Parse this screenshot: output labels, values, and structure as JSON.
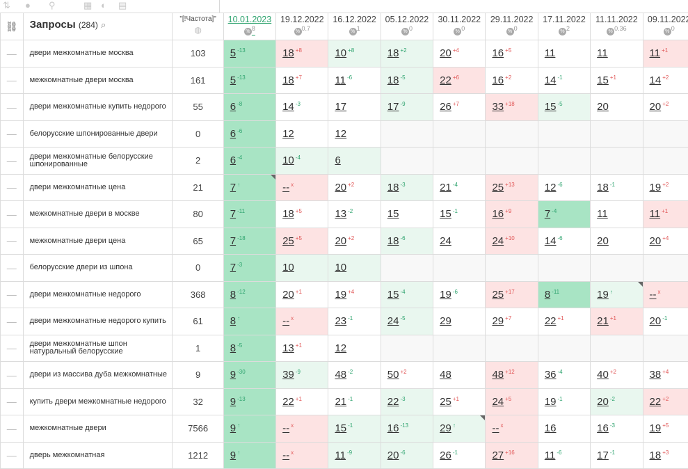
{
  "toolbar": {
    "icons": [
      "sort-icon",
      "toggle-icon",
      "link-icon",
      "calc-icon",
      "chart-icon",
      "export-icon"
    ]
  },
  "header": {
    "link_icon": "link-icon",
    "query_label": "Запросы",
    "query_count": "(284)",
    "search_icon": "search-icon",
    "freq_label": "\"[!Частота]\"",
    "globe_icon": "globe-icon",
    "dates": [
      {
        "date": "10.01.2023",
        "pct": "8"
      },
      {
        "date": "19.12.2022",
        "pct": "0.7"
      },
      {
        "date": "16.12.2022",
        "pct": "1"
      },
      {
        "date": "05.12.2022",
        "pct": "0"
      },
      {
        "date": "30.11.2022",
        "pct": "0"
      },
      {
        "date": "29.11.2022",
        "pct": "0"
      },
      {
        "date": "17.11.2022",
        "pct": "2"
      },
      {
        "date": "11.11.2022",
        "pct": "0.36"
      },
      {
        "date": "09.11.2022",
        "pct": "0"
      }
    ]
  },
  "colors": {
    "green": "#e9f7ef",
    "green_strong": "#a8e4c4",
    "red": "#fde3e3",
    "empty": "#f8f8f8",
    "up": "#2ea36e",
    "down": "#e05555"
  },
  "rows": [
    {
      "query": "двери межкомнатные москва",
      "freq": "103",
      "cells": [
        {
          "v": "5",
          "c": "-13",
          "s": "up",
          "b": "gg"
        },
        {
          "v": "18",
          "c": "+8",
          "s": "dn",
          "b": "r"
        },
        {
          "v": "10",
          "c": "+8",
          "s": "up",
          "b": "g"
        },
        {
          "v": "18",
          "c": "+2",
          "s": "up",
          "b": "g"
        },
        {
          "v": "20",
          "c": "+4",
          "s": "dn",
          "b": ""
        },
        {
          "v": "16",
          "c": "+5",
          "s": "dn",
          "b": ""
        },
        {
          "v": "11",
          "c": "",
          "s": "",
          "b": ""
        },
        {
          "v": "11",
          "c": "",
          "s": "",
          "b": ""
        },
        {
          "v": "11",
          "c": "+1",
          "s": "dn",
          "b": "r"
        }
      ]
    },
    {
      "query": "межкомнатные двери москва",
      "freq": "161",
      "cells": [
        {
          "v": "5",
          "c": "-13",
          "s": "up",
          "b": "gg"
        },
        {
          "v": "18",
          "c": "+7",
          "s": "dn",
          "b": ""
        },
        {
          "v": "11",
          "c": "-6",
          "s": "up",
          "b": ""
        },
        {
          "v": "18",
          "c": "-5",
          "s": "up",
          "b": "g"
        },
        {
          "v": "22",
          "c": "+6",
          "s": "dn",
          "b": "r"
        },
        {
          "v": "16",
          "c": "+2",
          "s": "dn",
          "b": ""
        },
        {
          "v": "14",
          "c": "-1",
          "s": "up",
          "b": ""
        },
        {
          "v": "15",
          "c": "+1",
          "s": "dn",
          "b": ""
        },
        {
          "v": "14",
          "c": "+2",
          "s": "dn",
          "b": ""
        }
      ]
    },
    {
      "query": "двери межкомнатные купить недорого",
      "freq": "55",
      "cells": [
        {
          "v": "6",
          "c": "-8",
          "s": "up",
          "b": "gg"
        },
        {
          "v": "14",
          "c": "-3",
          "s": "up",
          "b": ""
        },
        {
          "v": "17",
          "c": "",
          "s": "",
          "b": ""
        },
        {
          "v": "17",
          "c": "-9",
          "s": "up",
          "b": "g"
        },
        {
          "v": "26",
          "c": "+7",
          "s": "dn",
          "b": ""
        },
        {
          "v": "33",
          "c": "+18",
          "s": "dn",
          "b": "r"
        },
        {
          "v": "15",
          "c": "-5",
          "s": "up",
          "b": "g"
        },
        {
          "v": "20",
          "c": "",
          "s": "",
          "b": ""
        },
        {
          "v": "20",
          "c": "+2",
          "s": "dn",
          "b": ""
        }
      ]
    },
    {
      "query": "белорусские шпонированные двери",
      "freq": "0",
      "cells": [
        {
          "v": "6",
          "c": "-6",
          "s": "up",
          "b": "gg"
        },
        {
          "v": "12",
          "c": "",
          "s": "",
          "b": ""
        },
        {
          "v": "12",
          "c": "",
          "s": "",
          "b": ""
        },
        {
          "v": "",
          "c": "",
          "s": "",
          "b": "e"
        },
        {
          "v": "",
          "c": "",
          "s": "",
          "b": "e"
        },
        {
          "v": "",
          "c": "",
          "s": "",
          "b": "e"
        },
        {
          "v": "",
          "c": "",
          "s": "",
          "b": "e"
        },
        {
          "v": "",
          "c": "",
          "s": "",
          "b": "e"
        },
        {
          "v": "",
          "c": "",
          "s": "",
          "b": "e"
        }
      ]
    },
    {
      "query": "двери межкомнатные белорусские шпонированные",
      "freq": "2",
      "cells": [
        {
          "v": "6",
          "c": "-4",
          "s": "up",
          "b": "gg"
        },
        {
          "v": "10",
          "c": "-4",
          "s": "up",
          "b": "g"
        },
        {
          "v": "6",
          "c": "",
          "s": "",
          "b": "g"
        },
        {
          "v": "",
          "c": "",
          "s": "",
          "b": "e"
        },
        {
          "v": "",
          "c": "",
          "s": "",
          "b": "e"
        },
        {
          "v": "",
          "c": "",
          "s": "",
          "b": "e"
        },
        {
          "v": "",
          "c": "",
          "s": "",
          "b": "e"
        },
        {
          "v": "",
          "c": "",
          "s": "",
          "b": "e"
        },
        {
          "v": "",
          "c": "",
          "s": "",
          "b": "e"
        }
      ]
    },
    {
      "query": "двери межкомнатные цена",
      "freq": "21",
      "cells": [
        {
          "v": "7",
          "c": "↑",
          "s": "up",
          "b": "gg",
          "f": true
        },
        {
          "v": "--",
          "c": "x",
          "s": "dn",
          "b": "r"
        },
        {
          "v": "20",
          "c": "+2",
          "s": "dn",
          "b": ""
        },
        {
          "v": "18",
          "c": "-3",
          "s": "up",
          "b": "g"
        },
        {
          "v": "21",
          "c": "-4",
          "s": "up",
          "b": ""
        },
        {
          "v": "25",
          "c": "+13",
          "s": "dn",
          "b": "r"
        },
        {
          "v": "12",
          "c": "-6",
          "s": "up",
          "b": ""
        },
        {
          "v": "18",
          "c": "-1",
          "s": "up",
          "b": ""
        },
        {
          "v": "19",
          "c": "+2",
          "s": "dn",
          "b": ""
        }
      ]
    },
    {
      "query": "межкомнатные двери в москве",
      "freq": "80",
      "cells": [
        {
          "v": "7",
          "c": "-11",
          "s": "up",
          "b": "gg"
        },
        {
          "v": "18",
          "c": "+5",
          "s": "dn",
          "b": ""
        },
        {
          "v": "13",
          "c": "-2",
          "s": "up",
          "b": ""
        },
        {
          "v": "15",
          "c": "",
          "s": "",
          "b": ""
        },
        {
          "v": "15",
          "c": "-1",
          "s": "up",
          "b": ""
        },
        {
          "v": "16",
          "c": "+9",
          "s": "dn",
          "b": "r"
        },
        {
          "v": "7",
          "c": "-4",
          "s": "up",
          "b": "gg"
        },
        {
          "v": "11",
          "c": "",
          "s": "",
          "b": ""
        },
        {
          "v": "11",
          "c": "+1",
          "s": "dn",
          "b": "r"
        }
      ]
    },
    {
      "query": "межкомнатные двери цена",
      "freq": "65",
      "cells": [
        {
          "v": "7",
          "c": "-18",
          "s": "up",
          "b": "gg"
        },
        {
          "v": "25",
          "c": "+5",
          "s": "dn",
          "b": "r"
        },
        {
          "v": "20",
          "c": "+2",
          "s": "dn",
          "b": ""
        },
        {
          "v": "18",
          "c": "-6",
          "s": "up",
          "b": "g"
        },
        {
          "v": "24",
          "c": "",
          "s": "",
          "b": ""
        },
        {
          "v": "24",
          "c": "+10",
          "s": "dn",
          "b": "r"
        },
        {
          "v": "14",
          "c": "-6",
          "s": "up",
          "b": ""
        },
        {
          "v": "20",
          "c": "",
          "s": "",
          "b": ""
        },
        {
          "v": "20",
          "c": "+4",
          "s": "dn",
          "b": ""
        }
      ]
    },
    {
      "query": "белорусские двери из шпона",
      "freq": "0",
      "cells": [
        {
          "v": "7",
          "c": "-3",
          "s": "up",
          "b": "gg"
        },
        {
          "v": "10",
          "c": "",
          "s": "",
          "b": "g"
        },
        {
          "v": "10",
          "c": "",
          "s": "",
          "b": "g"
        },
        {
          "v": "",
          "c": "",
          "s": "",
          "b": "e"
        },
        {
          "v": "",
          "c": "",
          "s": "",
          "b": "e"
        },
        {
          "v": "",
          "c": "",
          "s": "",
          "b": "e"
        },
        {
          "v": "",
          "c": "",
          "s": "",
          "b": "e"
        },
        {
          "v": "",
          "c": "",
          "s": "",
          "b": "e"
        },
        {
          "v": "",
          "c": "",
          "s": "",
          "b": "e"
        }
      ]
    },
    {
      "query": "двери межкомнатные недорого",
      "freq": "368",
      "cells": [
        {
          "v": "8",
          "c": "-12",
          "s": "up",
          "b": "gg"
        },
        {
          "v": "20",
          "c": "+1",
          "s": "dn",
          "b": ""
        },
        {
          "v": "19",
          "c": "+4",
          "s": "dn",
          "b": ""
        },
        {
          "v": "15",
          "c": "-4",
          "s": "up",
          "b": "g"
        },
        {
          "v": "19",
          "c": "-6",
          "s": "up",
          "b": ""
        },
        {
          "v": "25",
          "c": "+17",
          "s": "dn",
          "b": "r"
        },
        {
          "v": "8",
          "c": "-11",
          "s": "up",
          "b": "gg"
        },
        {
          "v": "19",
          "c": "↑",
          "s": "up",
          "b": "g",
          "f": true
        },
        {
          "v": "--",
          "c": "x",
          "s": "dn",
          "b": "r"
        }
      ]
    },
    {
      "query": "двери межкомнатные недорого купить",
      "freq": "61",
      "cells": [
        {
          "v": "8",
          "c": "↑",
          "s": "up",
          "b": "gg"
        },
        {
          "v": "--",
          "c": "x",
          "s": "dn",
          "b": "r"
        },
        {
          "v": "23",
          "c": "-1",
          "s": "up",
          "b": ""
        },
        {
          "v": "24",
          "c": "-5",
          "s": "up",
          "b": "g"
        },
        {
          "v": "29",
          "c": "",
          "s": "",
          "b": ""
        },
        {
          "v": "29",
          "c": "+7",
          "s": "dn",
          "b": ""
        },
        {
          "v": "22",
          "c": "+1",
          "s": "dn",
          "b": ""
        },
        {
          "v": "21",
          "c": "+1",
          "s": "dn",
          "b": "r"
        },
        {
          "v": "20",
          "c": "-1",
          "s": "up",
          "b": ""
        }
      ]
    },
    {
      "query": "двери межкомнатные шпон натуральный белорусские",
      "freq": "1",
      "cells": [
        {
          "v": "8",
          "c": "-5",
          "s": "up",
          "b": "gg"
        },
        {
          "v": "13",
          "c": "+1",
          "s": "dn",
          "b": ""
        },
        {
          "v": "12",
          "c": "",
          "s": "",
          "b": ""
        },
        {
          "v": "",
          "c": "",
          "s": "",
          "b": "e"
        },
        {
          "v": "",
          "c": "",
          "s": "",
          "b": "e"
        },
        {
          "v": "",
          "c": "",
          "s": "",
          "b": "e"
        },
        {
          "v": "",
          "c": "",
          "s": "",
          "b": "e"
        },
        {
          "v": "",
          "c": "",
          "s": "",
          "b": "e"
        },
        {
          "v": "",
          "c": "",
          "s": "",
          "b": "e"
        }
      ]
    },
    {
      "query": "двери из массива дуба межкомнатные",
      "freq": "9",
      "cells": [
        {
          "v": "9",
          "c": "-30",
          "s": "up",
          "b": "gg"
        },
        {
          "v": "39",
          "c": "-9",
          "s": "up",
          "b": "g"
        },
        {
          "v": "48",
          "c": "-2",
          "s": "up",
          "b": ""
        },
        {
          "v": "50",
          "c": "+2",
          "s": "dn",
          "b": ""
        },
        {
          "v": "48",
          "c": "",
          "s": "",
          "b": ""
        },
        {
          "v": "48",
          "c": "+12",
          "s": "dn",
          "b": "r"
        },
        {
          "v": "36",
          "c": "-4",
          "s": "up",
          "b": ""
        },
        {
          "v": "40",
          "c": "+2",
          "s": "dn",
          "b": ""
        },
        {
          "v": "38",
          "c": "+4",
          "s": "dn",
          "b": ""
        }
      ]
    },
    {
      "query": "купить двери межкомнатные недорого",
      "freq": "32",
      "cells": [
        {
          "v": "9",
          "c": "-13",
          "s": "up",
          "b": "gg"
        },
        {
          "v": "22",
          "c": "+1",
          "s": "dn",
          "b": ""
        },
        {
          "v": "21",
          "c": "-1",
          "s": "up",
          "b": ""
        },
        {
          "v": "22",
          "c": "-3",
          "s": "up",
          "b": "g"
        },
        {
          "v": "25",
          "c": "+1",
          "s": "dn",
          "b": ""
        },
        {
          "v": "24",
          "c": "+5",
          "s": "dn",
          "b": "r"
        },
        {
          "v": "19",
          "c": "-1",
          "s": "up",
          "b": ""
        },
        {
          "v": "20",
          "c": "-2",
          "s": "up",
          "b": "g"
        },
        {
          "v": "22",
          "c": "+2",
          "s": "dn",
          "b": "r"
        }
      ]
    },
    {
      "query": "межкомнатные двери",
      "freq": "7566",
      "cells": [
        {
          "v": "9",
          "c": "↑",
          "s": "up",
          "b": "gg"
        },
        {
          "v": "--",
          "c": "x",
          "s": "dn",
          "b": "r"
        },
        {
          "v": "15",
          "c": "-1",
          "s": "up",
          "b": "g"
        },
        {
          "v": "16",
          "c": "-13",
          "s": "up",
          "b": "g"
        },
        {
          "v": "29",
          "c": "↑",
          "s": "up",
          "b": "g",
          "f": true
        },
        {
          "v": "--",
          "c": "x",
          "s": "dn",
          "b": "r"
        },
        {
          "v": "16",
          "c": "",
          "s": "",
          "b": ""
        },
        {
          "v": "16",
          "c": "-3",
          "s": "up",
          "b": ""
        },
        {
          "v": "19",
          "c": "+5",
          "s": "dn",
          "b": ""
        }
      ]
    },
    {
      "query": "дверь межкомнатная",
      "freq": "1212",
      "cells": [
        {
          "v": "9",
          "c": "↑",
          "s": "up",
          "b": "gg"
        },
        {
          "v": "--",
          "c": "x",
          "s": "dn",
          "b": "r"
        },
        {
          "v": "11",
          "c": "-9",
          "s": "up",
          "b": "g"
        },
        {
          "v": "20",
          "c": "-6",
          "s": "up",
          "b": "g"
        },
        {
          "v": "26",
          "c": "-1",
          "s": "up",
          "b": ""
        },
        {
          "v": "27",
          "c": "+16",
          "s": "dn",
          "b": "r"
        },
        {
          "v": "11",
          "c": "-6",
          "s": "up",
          "b": ""
        },
        {
          "v": "17",
          "c": "-1",
          "s": "up",
          "b": ""
        },
        {
          "v": "18",
          "c": "+3",
          "s": "dn",
          "b": ""
        }
      ]
    }
  ]
}
